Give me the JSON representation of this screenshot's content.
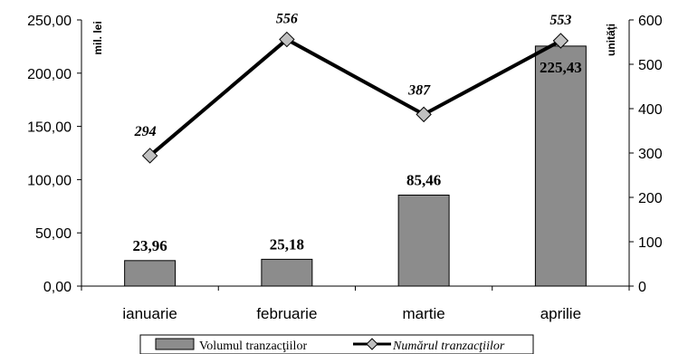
{
  "chart_data": {
    "type": "bar",
    "categories": [
      "ianuarie",
      "februarie",
      "martie",
      "aprilie"
    ],
    "series": [
      {
        "name": "Volumul tranzacţiilor",
        "type": "bar",
        "axis": "left",
        "values": [
          23.96,
          25.18,
          85.46,
          225.43
        ],
        "labels": [
          "23,96",
          "25,18",
          "85,46",
          "225,43"
        ],
        "color": "#8c8c8c"
      },
      {
        "name": "Numărul tranzacţiilor",
        "type": "line",
        "axis": "right",
        "values": [
          294,
          556,
          387,
          553
        ],
        "labels": [
          "294",
          "556",
          "387",
          "553"
        ],
        "color": "#000000",
        "marker_color": "#c0c0c0"
      }
    ],
    "y_left": {
      "label": "mil. lei",
      "ylim": [
        0,
        250
      ],
      "ticks": [
        0,
        50,
        100,
        150,
        200,
        250
      ],
      "tick_labels": [
        "0,00",
        "50,00",
        "100,00",
        "150,00",
        "200,00",
        "250,00"
      ]
    },
    "y_right": {
      "label": "unităţi",
      "ylim": [
        0,
        600
      ],
      "ticks": [
        0,
        100,
        200,
        300,
        400,
        500,
        600
      ],
      "tick_labels": [
        "0",
        "100",
        "200",
        "300",
        "400",
        "500",
        "600"
      ]
    },
    "grid": false,
    "legend": "bottom"
  }
}
